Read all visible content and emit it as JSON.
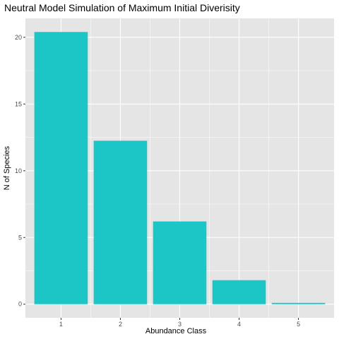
{
  "chart_data": {
    "type": "bar",
    "title": "Neutral Model Simulation of Maximum Initial Diverisity",
    "xlabel": "Abundance Class",
    "ylabel": "N of Species",
    "categories": [
      "1",
      "2",
      "3",
      "4",
      "5"
    ],
    "values": [
      20.4,
      12.25,
      6.2,
      1.8,
      0.1
    ],
    "yticks": [
      0,
      5,
      10,
      15,
      20
    ],
    "ylim": [
      -1.02,
      21.42
    ],
    "grid": true,
    "legend": "none",
    "colors": {
      "bar": "#1dc6c6",
      "panel": "#e5e5e5",
      "grid_major": "#ffffff",
      "tick_text": "#4d4d4d",
      "tick_mark": "#333333"
    }
  }
}
